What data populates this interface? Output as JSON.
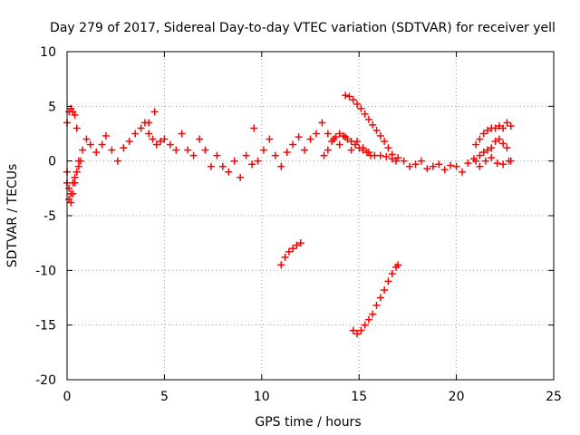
{
  "colors": {
    "series": "#ff0000",
    "axis": "#000000",
    "grid": "#a0a0a0",
    "background": "#ffffff"
  },
  "chart_data": {
    "type": "scatter",
    "title": "Day 279 of 2017, Sidereal Day-to-day VTEC variation (SDTVAR) for receiver yell",
    "xlabel": "GPS time / hours",
    "ylabel": "SDTVAR / TECUs",
    "xlim": [
      0,
      25
    ],
    "ylim": [
      -20,
      10
    ],
    "xticks": [
      0,
      5,
      10,
      15,
      20,
      25
    ],
    "yticks": [
      -20,
      -15,
      -10,
      -5,
      0,
      5,
      10
    ],
    "grid": true,
    "marker": "plus",
    "series": [
      {
        "name": "SDTVAR",
        "x": [
          0.0,
          0.1,
          0.2,
          0.3,
          0.4,
          0.5,
          0.0,
          0.1,
          0.2,
          0.3,
          0.4,
          0.5,
          0.6,
          0.8,
          1.0,
          1.2,
          1.5,
          1.8,
          2.0,
          2.3,
          2.6,
          2.9,
          3.2,
          3.5,
          3.8,
          4.0,
          4.2,
          4.4,
          4.6,
          4.8,
          5.0,
          5.3,
          5.6,
          5.9,
          6.2,
          6.5,
          6.8,
          7.1,
          7.4,
          7.7,
          8.0,
          8.3,
          8.6,
          8.9,
          9.2,
          9.5,
          9.8,
          10.1,
          10.4,
          10.7,
          11.0,
          11.3,
          11.6,
          11.9,
          12.2,
          12.5,
          12.8,
          13.1,
          13.4,
          13.7,
          14.0,
          14.3,
          14.6,
          14.9,
          15.2,
          15.5,
          15.8,
          16.1,
          16.4,
          16.7,
          17.0,
          17.3,
          17.6,
          17.9,
          18.2,
          18.5,
          18.8,
          19.1,
          19.4,
          19.7,
          20.0,
          20.3,
          20.6,
          20.9,
          21.2,
          21.5,
          21.8,
          22.1,
          22.4,
          22.7,
          22.8,
          0.0,
          0.1,
          0.2,
          0.3,
          0.4,
          0.5,
          0.6,
          0.7,
          4.5,
          4.2,
          9.6,
          11.0,
          11.2,
          11.4,
          11.6,
          11.8,
          12.0,
          14.3,
          14.5,
          14.7,
          14.9,
          15.1,
          15.3,
          15.5,
          15.7,
          15.9,
          16.1,
          16.3,
          16.5,
          16.7,
          16.9,
          13.2,
          13.4,
          13.6,
          13.8,
          14.0,
          14.2,
          14.4,
          14.6,
          14.8,
          15.0,
          15.2,
          15.4,
          15.6,
          21.0,
          21.2,
          21.4,
          21.6,
          21.8,
          22.0,
          22.2,
          22.4,
          22.6,
          22.8,
          21.0,
          21.2,
          21.4,
          21.6,
          21.8,
          22.0,
          22.2,
          22.4,
          22.6,
          14.7,
          14.9,
          15.1,
          15.3,
          15.5,
          15.7,
          15.9,
          16.1,
          16.3,
          16.5,
          16.7,
          16.9,
          17.0
        ],
        "y": [
          3.5,
          4.5,
          4.8,
          4.5,
          4.2,
          3.0,
          -1.0,
          -3.5,
          -3.8,
          -3.0,
          -2.0,
          -1.0,
          0.0,
          1.0,
          2.0,
          1.5,
          0.8,
          1.5,
          2.3,
          1.0,
          0.0,
          1.2,
          1.8,
          2.5,
          3.0,
          3.5,
          2.5,
          2.0,
          1.5,
          1.8,
          2.0,
          1.5,
          1.0,
          2.5,
          1.0,
          0.5,
          2.0,
          1.0,
          -0.5,
          0.5,
          -0.5,
          -1.0,
          0.0,
          -1.5,
          0.5,
          -0.3,
          0.0,
          1.0,
          2.0,
          0.5,
          -0.5,
          0.8,
          1.5,
          2.2,
          1.0,
          2.0,
          2.5,
          3.5,
          2.5,
          2.0,
          1.5,
          2.2,
          1.0,
          1.8,
          1.2,
          0.8,
          0.5,
          0.5,
          0.4,
          0.2,
          0.3,
          0.0,
          -0.5,
          -0.3,
          0.0,
          -0.7,
          -0.5,
          -0.3,
          -0.8,
          -0.4,
          -0.5,
          -1.0,
          -0.2,
          0.2,
          -0.5,
          0.0,
          0.3,
          -0.2,
          -0.3,
          0.0,
          0.0,
          -2.0,
          -2.5,
          -3.0,
          -2.0,
          -1.5,
          -1.0,
          -0.5,
          0.0,
          4.5,
          3.5,
          3.0,
          -9.5,
          -8.8,
          -8.3,
          -8.0,
          -7.7,
          -7.5,
          6.0,
          5.9,
          5.6,
          5.2,
          4.8,
          4.3,
          3.8,
          3.3,
          2.8,
          2.3,
          1.8,
          1.2,
          0.6,
          0.0,
          0.5,
          1.0,
          1.8,
          2.2,
          2.5,
          2.3,
          2.0,
          1.8,
          1.5,
          1.2,
          1.0,
          0.8,
          0.5,
          1.5,
          2.0,
          2.5,
          2.8,
          3.0,
          3.0,
          3.2,
          3.0,
          3.5,
          3.2,
          0.0,
          0.5,
          0.8,
          1.0,
          1.2,
          1.8,
          2.0,
          1.6,
          1.2,
          -15.5,
          -15.8,
          -15.5,
          -15.0,
          -14.5,
          -14.0,
          -13.2,
          -12.5,
          -11.8,
          -11.0,
          -10.3,
          -9.7,
          -9.5
        ]
      }
    ]
  }
}
